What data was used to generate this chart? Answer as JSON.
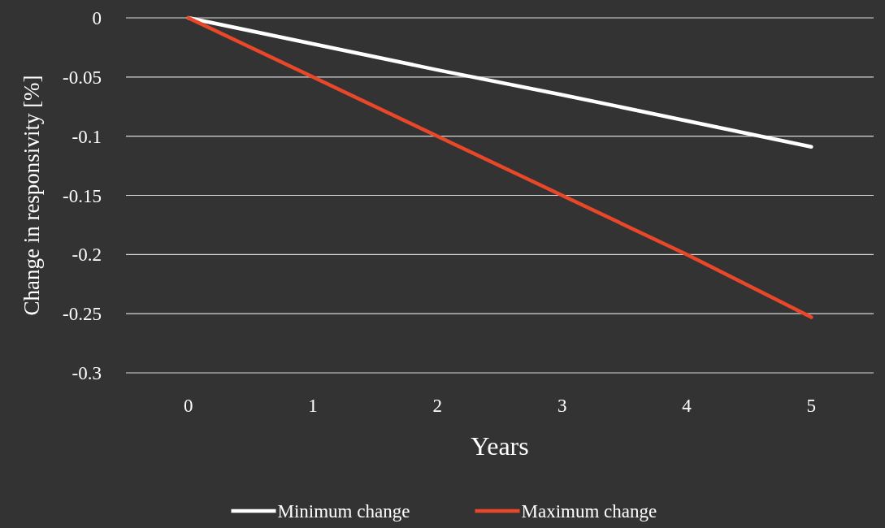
{
  "chart_data": {
    "type": "line",
    "xlabel": "Years",
    "ylabel": "Change in responsivity [%]",
    "categories": [
      "0",
      "1",
      "2",
      "3",
      "4",
      "5"
    ],
    "series": [
      {
        "name": "Minimum change",
        "color": "#ffffff",
        "values": [
          0,
          -0.022,
          -0.044,
          -0.065,
          -0.087,
          -0.109
        ]
      },
      {
        "name": "Maximum change",
        "color": "#e8472a",
        "values": [
          0,
          -0.05,
          -0.1,
          -0.15,
          -0.2,
          -0.253
        ]
      }
    ],
    "ylim": [
      -0.3,
      0
    ],
    "yticks": [
      -0.3,
      -0.25,
      -0.2,
      -0.15,
      -0.1,
      -0.05,
      0
    ],
    "grid": "y",
    "legend": "bottom",
    "marker": "none",
    "line_style": "solid"
  }
}
